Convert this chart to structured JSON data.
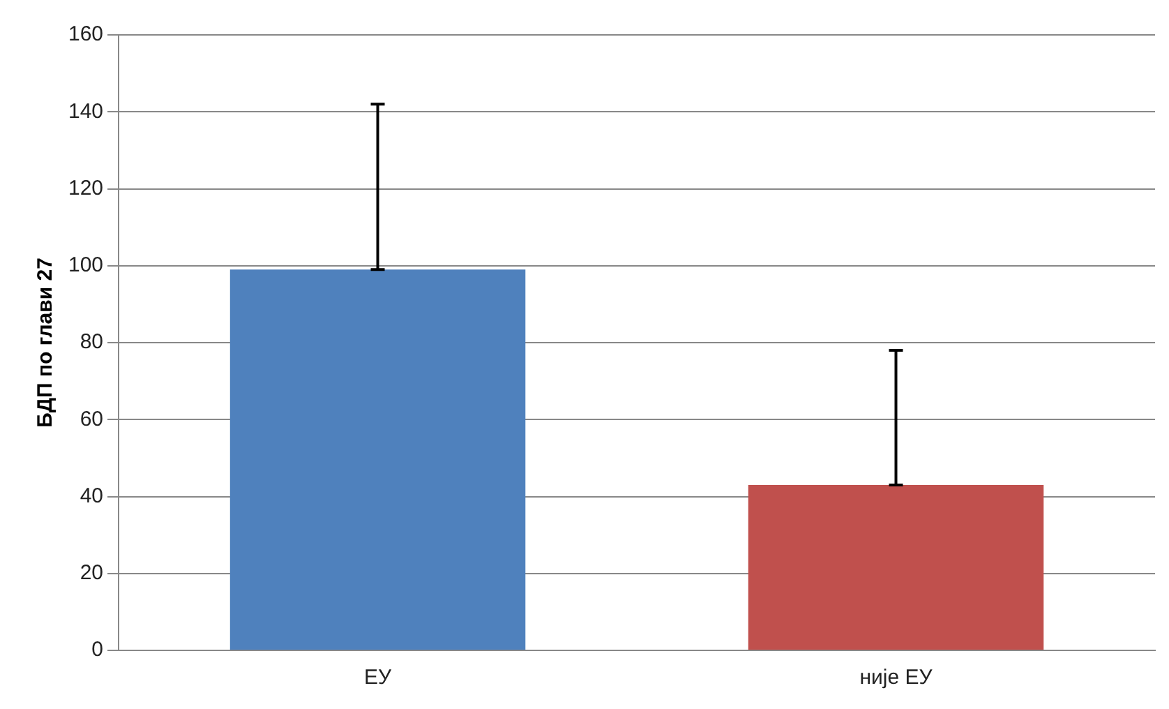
{
  "chart_data": {
    "type": "bar",
    "ylabel": "БДП по глави 27",
    "categories": [
      "ЕУ",
      "није ЕУ"
    ],
    "values": [
      99,
      43
    ],
    "colors": [
      "#4f81bd",
      "#c0504d"
    ],
    "errors": [
      [
        99,
        142
      ],
      [
        43,
        78
      ]
    ],
    "ylim": [
      0,
      160
    ],
    "yticks": [
      0,
      20,
      40,
      60,
      80,
      100,
      120,
      140,
      160
    ],
    "grid": "y"
  }
}
